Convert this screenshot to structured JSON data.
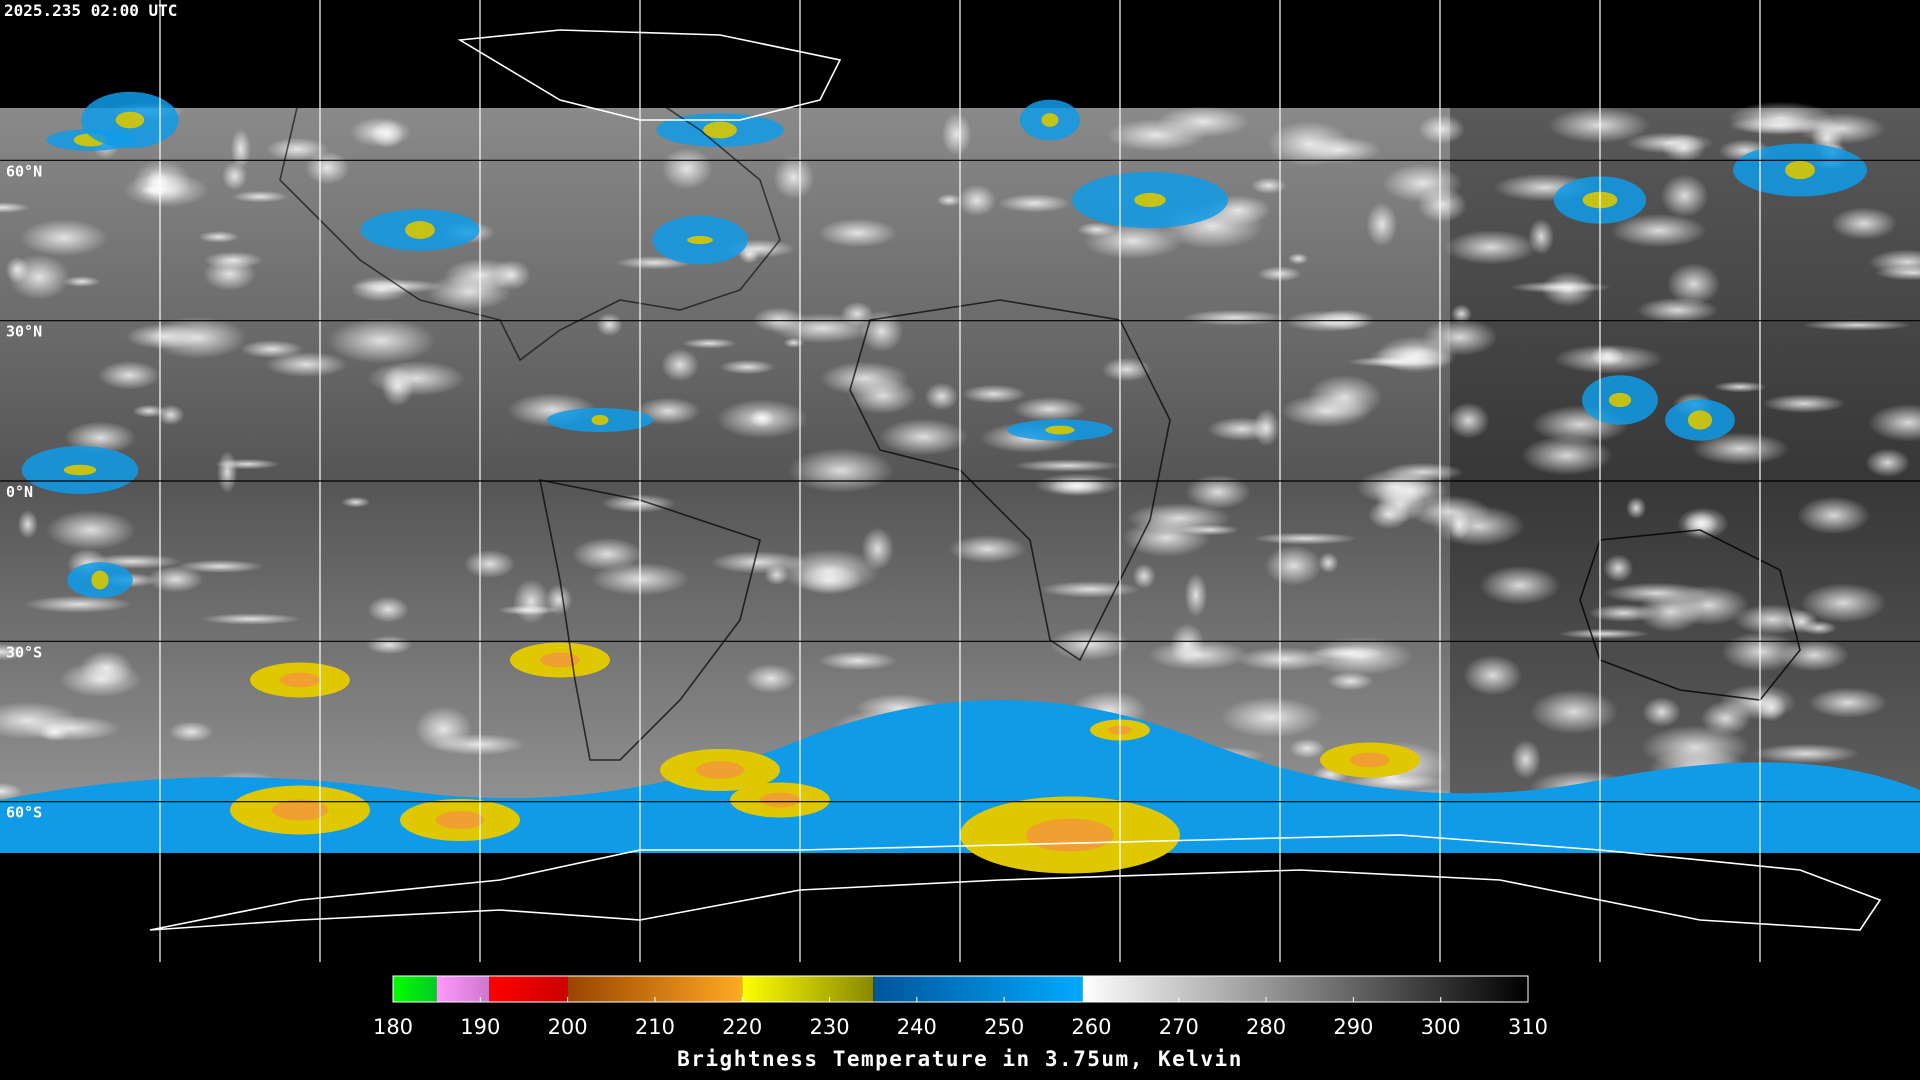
{
  "timestamp": "2025.235 02:00 UTC",
  "map": {
    "ylim": [
      -90,
      90
    ],
    "yticks": [
      {
        "value": 60,
        "label": "60°N"
      },
      {
        "value": 30,
        "label": "30°N"
      },
      {
        "value": 0,
        "label": "0°N"
      },
      {
        "value": -30,
        "label": "30°S"
      },
      {
        "value": -60,
        "label": "60°S"
      }
    ]
  },
  "colorbar": {
    "label": "Brightness Temperature in 3.75um, Kelvin",
    "range": [
      180,
      310
    ],
    "ticks": [
      180,
      190,
      200,
      210,
      220,
      230,
      240,
      250,
      260,
      270,
      280,
      290,
      300,
      310
    ],
    "segments": [
      {
        "from": 180,
        "to": 185,
        "colors": [
          "#00ff00",
          "#00cc22"
        ]
      },
      {
        "from": 185,
        "to": 191,
        "colors": [
          "#ff99ff",
          "#cc77cc"
        ]
      },
      {
        "from": 191,
        "to": 200,
        "colors": [
          "#ff0000",
          "#cc0000"
        ]
      },
      {
        "from": 200,
        "to": 220,
        "colors": [
          "#994400",
          "#ffaa22"
        ]
      },
      {
        "from": 220,
        "to": 235,
        "colors": [
          "#ffff00",
          "#888800"
        ]
      },
      {
        "from": 235,
        "to": 259,
        "colors": [
          "#005599",
          "#00aaff"
        ]
      },
      {
        "from": 259,
        "to": 310,
        "colors": [
          "#ffffff",
          "#000000"
        ]
      }
    ]
  }
}
